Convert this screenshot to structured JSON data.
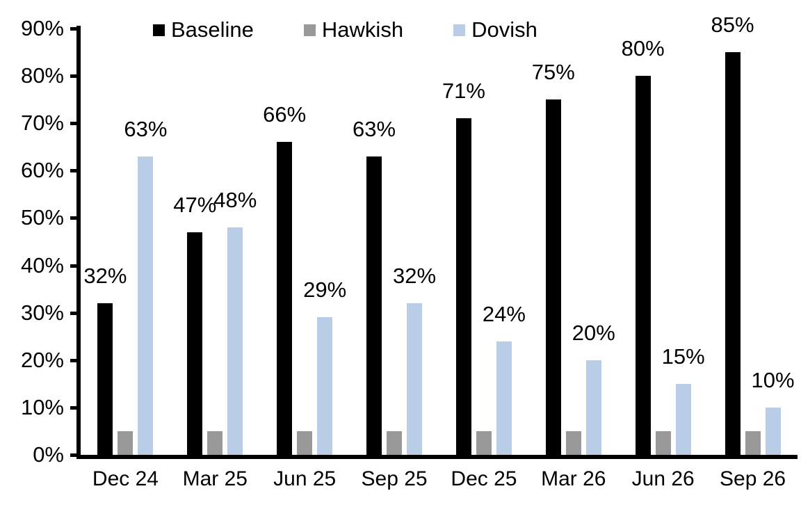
{
  "chart_data": {
    "type": "bar",
    "title": "",
    "categories": [
      "Dec 24",
      "Mar 25",
      "Jun 25",
      "Sep 25",
      "Dec 25",
      "Mar 26",
      "Jun 26",
      "Sep 26"
    ],
    "series": [
      {
        "name": "Baseline",
        "color": "#000000",
        "values": [
          32,
          47,
          66,
          63,
          71,
          75,
          80,
          85
        ],
        "data_labels": [
          "32%",
          "47%",
          "66%",
          "63%",
          "71%",
          "75%",
          "80%",
          "85%"
        ]
      },
      {
        "name": "Hawkish",
        "color": "#999999",
        "values": [
          5,
          5,
          5,
          5,
          5,
          5,
          5,
          5
        ],
        "data_labels": [
          null,
          null,
          null,
          null,
          null,
          null,
          null,
          null
        ]
      },
      {
        "name": "Dovish",
        "color": "#B9CDE6",
        "values": [
          63,
          48,
          29,
          32,
          24,
          20,
          15,
          10
        ],
        "data_labels": [
          "63%",
          "48%",
          "29%",
          "32%",
          "24%",
          "20%",
          "15%",
          "10%"
        ]
      }
    ],
    "ylim": [
      0,
      90
    ],
    "ytick_step": 10,
    "ytick_labels": [
      "0%",
      "10%",
      "20%",
      "30%",
      "40%",
      "50%",
      "60%",
      "70%",
      "80%",
      "90%"
    ],
    "legend_position": "top",
    "grid": false,
    "axis_color": "#000000"
  }
}
